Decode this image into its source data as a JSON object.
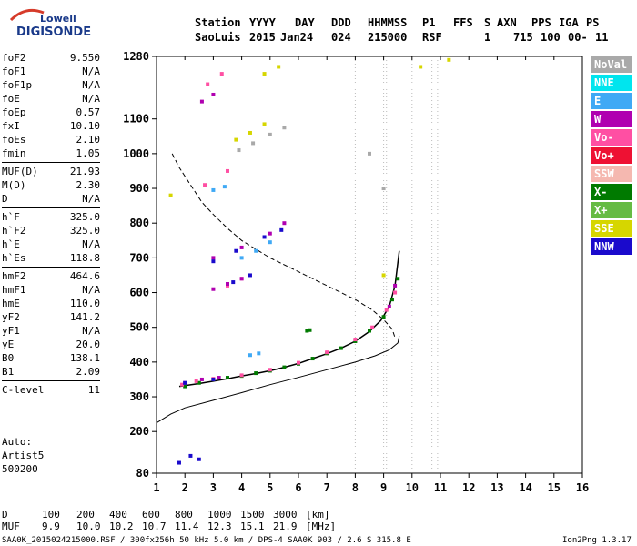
{
  "logo": {
    "brand_top": "Lowell",
    "brand_bottom": "DIGISONDE"
  },
  "header": {
    "line1": [
      "Station",
      "YYYY",
      "DAY",
      "DDD",
      "HHMMSS",
      "P1",
      "FFS",
      "S",
      "AXN",
      "PPS",
      "IGA",
      "PS"
    ],
    "line2": [
      "SaoLuis",
      "2015",
      "Jan24",
      "024",
      "215000",
      "RSF",
      "1",
      "715",
      "100",
      "00-",
      "11"
    ]
  },
  "params": [
    {
      "name": "foF2",
      "value": "9.550"
    },
    {
      "name": "foF1",
      "value": "N/A"
    },
    {
      "name": "foF1p",
      "value": "N/A"
    },
    {
      "name": "foE",
      "value": "N/A"
    },
    {
      "name": "foEp",
      "value": "0.57"
    },
    {
      "name": "fxI",
      "value": "10.10"
    },
    {
      "name": "foEs",
      "value": "2.10"
    },
    {
      "name": "fmin",
      "value": "1.05"
    },
    {
      "sep": true
    },
    {
      "name": "MUF(D)",
      "value": "21.93"
    },
    {
      "name": "M(D)",
      "value": "2.30"
    },
    {
      "name": "D",
      "value": "N/A"
    },
    {
      "sep": true
    },
    {
      "name": "h`F",
      "value": "325.0"
    },
    {
      "name": "h`F2",
      "value": "325.0"
    },
    {
      "name": "h`E",
      "value": "N/A"
    },
    {
      "name": "h`Es",
      "value": "118.8"
    },
    {
      "sep": true
    },
    {
      "name": "hmF2",
      "value": "464.6"
    },
    {
      "name": "hmF1",
      "value": "N/A"
    },
    {
      "name": "hmE",
      "value": "110.0"
    },
    {
      "name": "yF2",
      "value": "141.2"
    },
    {
      "name": "yF1",
      "value": "N/A"
    },
    {
      "name": "yE",
      "value": "20.0"
    },
    {
      "name": "B0",
      "value": "138.1"
    },
    {
      "name": "B1",
      "value": "2.09"
    },
    {
      "sep": true
    },
    {
      "name": "C-level",
      "value": "11"
    },
    {
      "sep": true
    }
  ],
  "auto": {
    "line1": "Auto:",
    "line2": "Artist5",
    "line3": "500200"
  },
  "legend": [
    {
      "label": "NoVal",
      "color": "#a9a9a9"
    },
    {
      "label": "NNE",
      "color": "#00e5ee"
    },
    {
      "label": "E",
      "color": "#3fa9f5"
    },
    {
      "label": "W",
      "color": "#b000b0"
    },
    {
      "label": "Vo-",
      "color": "#ff4fa3"
    },
    {
      "label": "Vo+",
      "color": "#ee1133"
    },
    {
      "label": "SSW",
      "color": "#f5b8b0"
    },
    {
      "label": "X-",
      "color": "#007a00"
    },
    {
      "label": "X+",
      "color": "#66bb44"
    },
    {
      "label": "SSE",
      "color": "#d6d600"
    },
    {
      "label": "NNW",
      "color": "#1a0acc"
    }
  ],
  "footer": {
    "d_label": "D",
    "d_values": [
      "100",
      "200",
      "400",
      "600",
      "800",
      "1000",
      "1500",
      "3000"
    ],
    "d_unit": "[km]",
    "muf_label": "MUF",
    "muf_values": [
      "9.9",
      "10.0",
      "10.2",
      "10.7",
      "11.4",
      "12.3",
      "15.1",
      "21.9"
    ],
    "muf_unit": "[MHz]",
    "file_info": "SAA0K_2015024215000.RSF / 300fx256h 50 kHz 5.0 km / DPS-4 SAA0K 903 / 2.6 S 315.8 E",
    "version": "Ion2Png 1.3.17"
  },
  "chart_data": {
    "type": "scatter",
    "title": "",
    "xlabel": "",
    "ylabel": "",
    "x_ticks": [
      "1",
      "2",
      "3",
      "4",
      "5",
      "6",
      "7",
      "8",
      "9",
      "10",
      "11",
      "12",
      "13",
      "14",
      "15",
      "16"
    ],
    "y_ticks": [
      "80",
      "200",
      "300",
      "400",
      "500",
      "600",
      "700",
      "800",
      "900",
      "1000",
      "1100",
      "1280"
    ],
    "xlim": [
      1,
      16
    ],
    "ylim": [
      80,
      1280
    ],
    "grid": false,
    "series": [
      {
        "name": "X-",
        "color": "#007a00",
        "points": [
          [
            2.0,
            330
          ],
          [
            2.5,
            340
          ],
          [
            3.0,
            350
          ],
          [
            3.5,
            355
          ],
          [
            4.0,
            360
          ],
          [
            4.5,
            368
          ],
          [
            5.0,
            375
          ],
          [
            5.5,
            385
          ],
          [
            6.0,
            395
          ],
          [
            6.5,
            410
          ],
          [
            7.0,
            425
          ],
          [
            7.5,
            440
          ],
          [
            8.0,
            460
          ],
          [
            8.5,
            490
          ],
          [
            9.0,
            530
          ],
          [
            9.3,
            580
          ],
          [
            9.5,
            640
          ],
          [
            6.3,
            490
          ],
          [
            6.4,
            492
          ]
        ]
      },
      {
        "name": "Vo-",
        "color": "#ff4fa3",
        "points": [
          [
            1.9,
            335
          ],
          [
            2.4,
            345
          ],
          [
            3.0,
            352
          ],
          [
            4.0,
            362
          ],
          [
            5.0,
            378
          ],
          [
            6.0,
            398
          ],
          [
            7.0,
            428
          ],
          [
            8.0,
            465
          ],
          [
            8.6,
            500
          ],
          [
            9.1,
            550
          ],
          [
            9.4,
            600
          ],
          [
            3.5,
            620
          ],
          [
            4.0,
            640
          ],
          [
            2.7,
            910
          ],
          [
            3.5,
            950
          ],
          [
            2.8,
            1200
          ],
          [
            3.3,
            1230
          ]
        ]
      },
      {
        "name": "W",
        "color": "#b000b0",
        "points": [
          [
            2.0,
            340
          ],
          [
            2.6,
            350
          ],
          [
            3.2,
            355
          ],
          [
            9.2,
            560
          ],
          [
            9.4,
            620
          ],
          [
            3.0,
            610
          ],
          [
            3.5,
            625
          ],
          [
            4.0,
            640
          ],
          [
            3.0,
            700
          ],
          [
            4.0,
            730
          ],
          [
            5.0,
            770
          ],
          [
            5.5,
            800
          ],
          [
            2.6,
            1150
          ],
          [
            3.0,
            1170
          ]
        ]
      },
      {
        "name": "NNW",
        "color": "#1a0acc",
        "points": [
          [
            1.8,
            110
          ],
          [
            2.2,
            130
          ],
          [
            2.5,
            120
          ],
          [
            2.0,
            340
          ],
          [
            3.0,
            350
          ],
          [
            3.7,
            630
          ],
          [
            4.3,
            650
          ],
          [
            3.0,
            690
          ],
          [
            3.8,
            720
          ],
          [
            4.8,
            760
          ],
          [
            5.4,
            780
          ]
        ]
      },
      {
        "name": "E",
        "color": "#3fa9f5",
        "points": [
          [
            4.3,
            420
          ],
          [
            4.6,
            425
          ],
          [
            4.0,
            700
          ],
          [
            4.5,
            720
          ],
          [
            5.0,
            745
          ],
          [
            3.0,
            895
          ],
          [
            3.4,
            905
          ]
        ]
      },
      {
        "name": "SSE",
        "color": "#d6d600",
        "points": [
          [
            3.8,
            1040
          ],
          [
            4.3,
            1060
          ],
          [
            4.8,
            1085
          ],
          [
            4.8,
            1230
          ],
          [
            5.3,
            1250
          ],
          [
            9.0,
            650
          ],
          [
            10.3,
            1250
          ],
          [
            11.3,
            1270
          ],
          [
            1.5,
            880
          ]
        ]
      },
      {
        "name": "NoVal",
        "color": "#a9a9a9",
        "points": [
          [
            3.9,
            1010
          ],
          [
            4.4,
            1030
          ],
          [
            5.0,
            1055
          ],
          [
            5.5,
            1075
          ],
          [
            9.0,
            900
          ],
          [
            8.5,
            1000
          ]
        ]
      }
    ],
    "lines": [
      {
        "name": "profile",
        "style": "solid",
        "points": [
          [
            1.0,
            225
          ],
          [
            1.5,
            250
          ],
          [
            2.0,
            268
          ],
          [
            3.0,
            290
          ],
          [
            4.0,
            312
          ],
          [
            5.0,
            335
          ],
          [
            6.0,
            356
          ],
          [
            7.0,
            378
          ],
          [
            8.0,
            400
          ],
          [
            8.7,
            418
          ],
          [
            9.2,
            435
          ],
          [
            9.5,
            455
          ],
          [
            9.55,
            475
          ]
        ]
      },
      {
        "name": "mode-curve",
        "style": "dashed",
        "points": [
          [
            1.55,
            1000
          ],
          [
            1.8,
            960
          ],
          [
            2.2,
            910
          ],
          [
            2.6,
            860
          ],
          [
            3.0,
            825
          ],
          [
            3.5,
            785
          ],
          [
            4.0,
            750
          ],
          [
            5.0,
            700
          ],
          [
            6.0,
            660
          ],
          [
            7.0,
            620
          ],
          [
            8.0,
            580
          ],
          [
            8.6,
            550
          ],
          [
            9.0,
            522
          ],
          [
            9.3,
            495
          ],
          [
            9.4,
            470
          ]
        ]
      },
      {
        "name": "trace",
        "style": "solid",
        "points": [
          [
            1.8,
            330
          ],
          [
            2.5,
            338
          ],
          [
            3.0,
            345
          ],
          [
            3.5,
            352
          ],
          [
            4.0,
            360
          ],
          [
            4.5,
            367
          ],
          [
            5.0,
            375
          ],
          [
            5.5,
            385
          ],
          [
            6.0,
            396
          ],
          [
            6.5,
            410
          ],
          [
            7.0,
            424
          ],
          [
            7.5,
            440
          ],
          [
            8.0,
            460
          ],
          [
            8.5,
            488
          ],
          [
            8.9,
            520
          ],
          [
            9.2,
            560
          ],
          [
            9.4,
            620
          ],
          [
            9.55,
            720
          ]
        ]
      }
    ]
  }
}
